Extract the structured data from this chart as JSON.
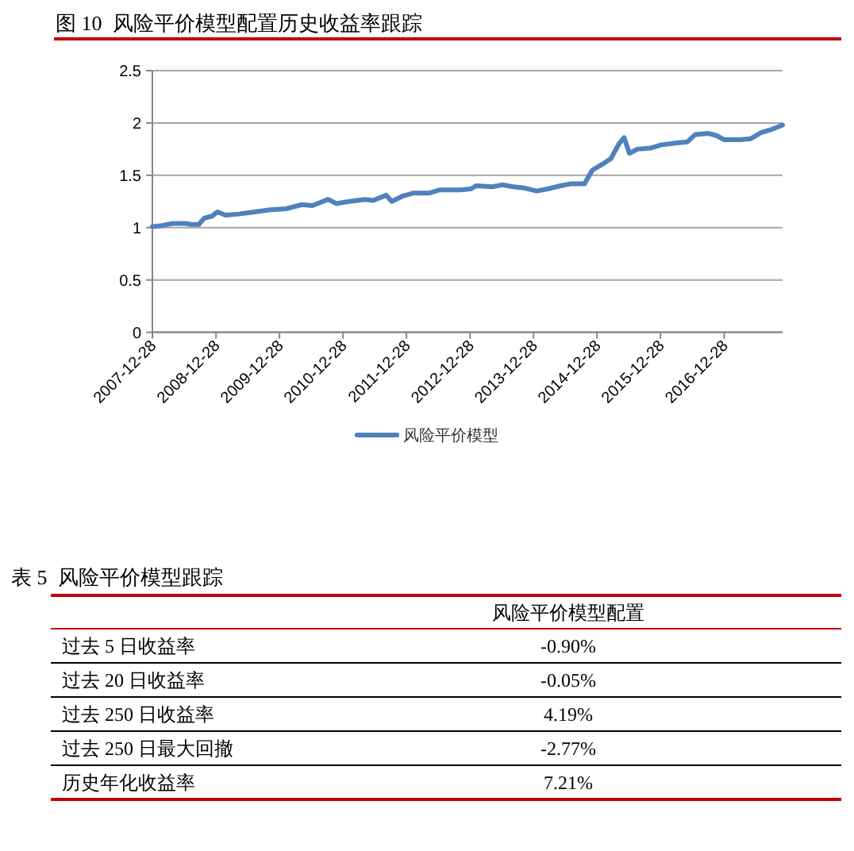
{
  "chart_data": [
    {
      "type": "line",
      "title": "图 10  风险平价模型配置历史收益率跟踪",
      "x": [
        "2007-12-28",
        "2008-02-21",
        "2008-04-22",
        "2008-07-07",
        "2008-08-06",
        "2008-09-20",
        "2008-10-21",
        "2008-12-05",
        "2009-01-05",
        "2009-02-20",
        "2009-05-07",
        "2009-08-06",
        "2009-11-05",
        "2010-02-04",
        "2010-05-06",
        "2010-07-05",
        "2010-10-04",
        "2010-11-19",
        "2011-02-03",
        "2011-05-05",
        "2011-06-19",
        "2011-09-03",
        "2011-10-04",
        "2011-12-04",
        "2012-02-02",
        "2012-05-04",
        "2012-07-04",
        "2012-11-02",
        "2013-01-01",
        "2013-02-01",
        "2013-05-03",
        "2013-07-03",
        "2013-09-02",
        "2013-11-01",
        "2014-01-16",
        "2014-03-18",
        "2014-06-02",
        "2014-08-02",
        "2014-10-17",
        "2014-12-01",
        "2015-02-01",
        "2015-03-18",
        "2015-05-03",
        "2015-06-02",
        "2015-07-02",
        "2015-08-17",
        "2015-11-01",
        "2015-12-30",
        "2016-03-31",
        "2016-05-31",
        "2016-07-15",
        "2016-09-30",
        "2016-11-14",
        "2016-12-29",
        "2017-03-31",
        "2017-05-31",
        "2017-07-31",
        "2017-09-30",
        "2017-11-29"
      ],
      "series": [
        {
          "name": "风险平价模型",
          "color": "#4f81bd",
          "values": [
            1.01,
            1.02,
            1.04,
            1.04,
            1.03,
            1.03,
            1.09,
            1.11,
            1.15,
            1.12,
            1.13,
            1.15,
            1.17,
            1.18,
            1.22,
            1.21,
            1.27,
            1.23,
            1.25,
            1.27,
            1.26,
            1.31,
            1.25,
            1.3,
            1.33,
            1.33,
            1.36,
            1.36,
            1.37,
            1.4,
            1.39,
            1.41,
            1.39,
            1.38,
            1.35,
            1.37,
            1.4,
            1.42,
            1.42,
            1.55,
            1.61,
            1.66,
            1.8,
            1.86,
            1.71,
            1.75,
            1.76,
            1.79,
            1.81,
            1.82,
            1.89,
            1.9,
            1.88,
            1.84,
            1.84,
            1.85,
            1.91,
            1.94,
            1.98
          ]
        }
      ],
      "xlim": [
        "2007-12-28",
        "2017-11-29"
      ],
      "xticks": [
        "2007-12-28",
        "2008-12-28",
        "2009-12-28",
        "2010-12-28",
        "2011-12-28",
        "2012-12-28",
        "2013-12-28",
        "2014-12-28",
        "2015-12-28",
        "2016-12-28"
      ],
      "ylim": [
        0,
        2.5
      ],
      "yticks": [
        0,
        0.5,
        1,
        1.5,
        2,
        2.5
      ],
      "grid": "y",
      "legend": "bottom"
    },
    {
      "type": "other",
      "title": "表 5  风险平价模型跟踪",
      "categories": [
        "过去 5 日收益率",
        "过去 20 日收益率",
        "过去 250 日收益率",
        "过去 250 日最大回撤",
        "历史年化收益率"
      ],
      "series": [
        {
          "name": "风险平价模型配置",
          "values": [
            -0.9,
            -0.05,
            4.19,
            -2.77,
            7.21
          ],
          "value_labels": [
            "-0.90%",
            "-0.05%",
            "4.19%",
            "-2.77%",
            "7.21%"
          ]
        }
      ]
    }
  ]
}
